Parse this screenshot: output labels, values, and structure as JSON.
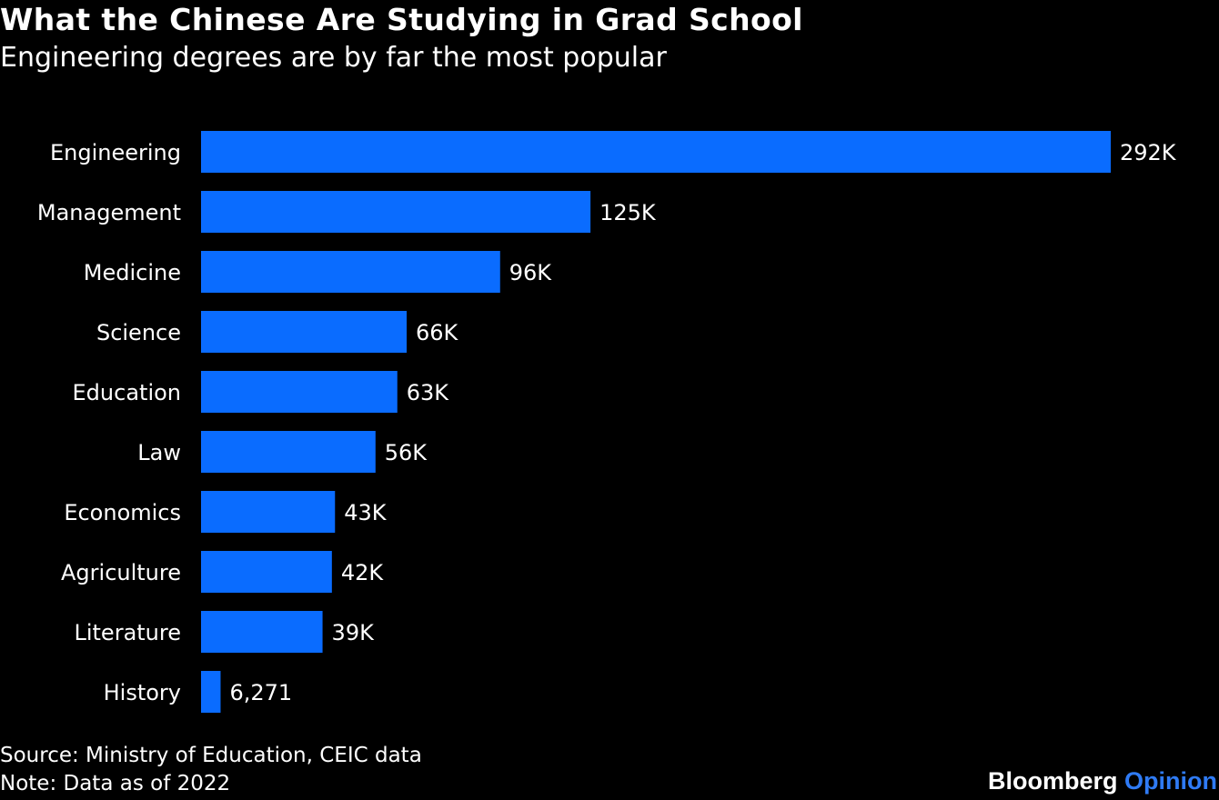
{
  "title": "What the Chinese Are Studying in Grad School",
  "subtitle": "Engineering degrees are by far the most popular",
  "footer": {
    "source": "Source: Ministry of Education, CEIC data",
    "note": "Note: Data as of 2022"
  },
  "brand": {
    "name": "Bloomberg",
    "suffix": "Opinion"
  },
  "colors": {
    "background": "#000000",
    "bar": "#0a6cff",
    "text": "#ffffff",
    "brand_accent": "#2f7bf5"
  },
  "chart_data": {
    "type": "bar",
    "orientation": "horizontal",
    "title": "What the Chinese Are Studying in Grad School",
    "subtitle": "Engineering degrees are by far the most popular",
    "xlabel": "",
    "ylabel": "",
    "grid": false,
    "categories": [
      "Engineering",
      "Management",
      "Medicine",
      "Science",
      "Education",
      "Law",
      "Economics",
      "Agriculture",
      "Literature",
      "History"
    ],
    "values": [
      292000,
      125000,
      96000,
      66000,
      63000,
      56000,
      43000,
      42000,
      39000,
      6271
    ],
    "value_labels": [
      "292K",
      "125K",
      "96K",
      "66K",
      "63K",
      "56K",
      "43K",
      "42K",
      "39K",
      "6,271"
    ],
    "xlim": [
      0,
      292000
    ]
  }
}
